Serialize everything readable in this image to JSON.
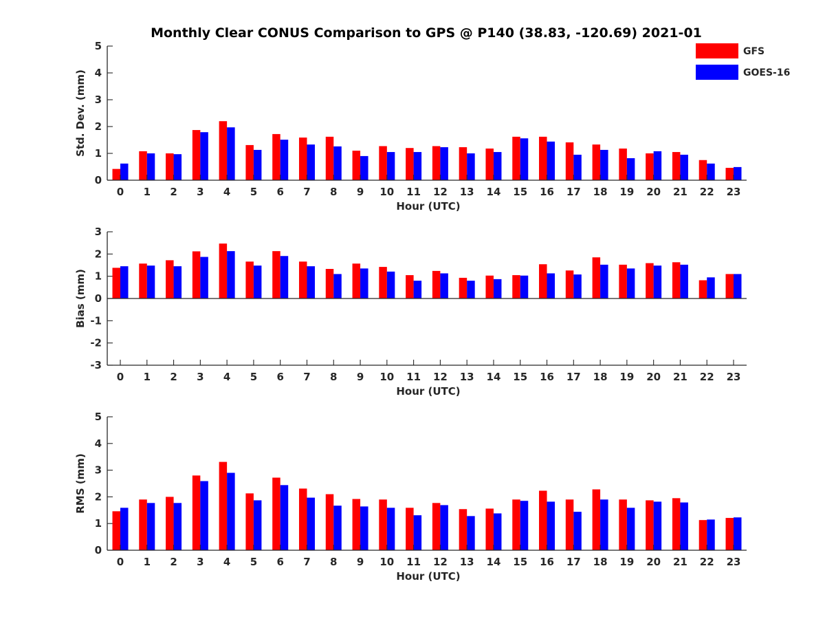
{
  "title": "Monthly Clear CONUS Comparison to GPS @ P140 (38.83, -120.69) 2021-01",
  "legend": [
    {
      "name": "GFS",
      "color": "#ff0000"
    },
    {
      "name": "GOES-16",
      "color": "#0000ff"
    }
  ],
  "chart_data": [
    {
      "type": "bar",
      "ylabel": "Std. Dev. (mm)",
      "xlabel": "Hour (UTC)",
      "ylim": [
        0,
        5
      ],
      "yticks": [
        0,
        1,
        2,
        3,
        4,
        5
      ],
      "categories": [
        "0",
        "1",
        "2",
        "3",
        "4",
        "5",
        "6",
        "7",
        "8",
        "9",
        "10",
        "11",
        "12",
        "13",
        "14",
        "15",
        "16",
        "17",
        "18",
        "19",
        "20",
        "21",
        "22",
        "23"
      ],
      "series": [
        {
          "name": "GFS",
          "color": "#ff0000",
          "values": [
            0.42,
            1.08,
            1.0,
            1.87,
            2.2,
            1.31,
            1.72,
            1.59,
            1.62,
            1.1,
            1.27,
            1.2,
            1.27,
            1.23,
            1.18,
            1.62,
            1.62,
            1.41,
            1.33,
            1.18,
            1.0,
            1.05,
            0.75,
            0.46
          ]
        },
        {
          "name": "GOES-16",
          "color": "#0000ff",
          "values": [
            0.62,
            1.0,
            0.97,
            1.79,
            1.97,
            1.13,
            1.51,
            1.33,
            1.26,
            0.9,
            1.05,
            1.05,
            1.23,
            1.0,
            1.05,
            1.56,
            1.44,
            0.95,
            1.13,
            0.82,
            1.08,
            0.95,
            0.62,
            0.49
          ]
        }
      ]
    },
    {
      "type": "bar",
      "ylabel": "Bias (mm)",
      "xlabel": "Hour (UTC)",
      "ylim": [
        -3,
        3
      ],
      "yticks": [
        -3,
        -2,
        -1,
        0,
        1,
        2,
        3
      ],
      "categories": [
        "0",
        "1",
        "2",
        "3",
        "4",
        "5",
        "6",
        "7",
        "8",
        "9",
        "10",
        "11",
        "12",
        "13",
        "14",
        "15",
        "16",
        "17",
        "18",
        "19",
        "20",
        "21",
        "22",
        "23"
      ],
      "series": [
        {
          "name": "GFS",
          "color": "#ff0000",
          "values": [
            1.38,
            1.57,
            1.72,
            2.12,
            2.47,
            1.66,
            2.13,
            1.66,
            1.33,
            1.57,
            1.42,
            1.05,
            1.24,
            0.93,
            1.03,
            1.05,
            1.54,
            1.26,
            1.85,
            1.52,
            1.59,
            1.63,
            0.82,
            1.1
          ]
        },
        {
          "name": "GOES-16",
          "color": "#0000ff",
          "values": [
            1.45,
            1.48,
            1.45,
            1.87,
            2.13,
            1.48,
            1.91,
            1.45,
            1.1,
            1.35,
            1.21,
            0.8,
            1.13,
            0.8,
            0.87,
            1.03,
            1.13,
            1.08,
            1.52,
            1.35,
            1.48,
            1.52,
            0.95,
            1.1
          ]
        }
      ]
    },
    {
      "type": "bar",
      "ylabel": "RMS (mm)",
      "xlabel": "Hour (UTC)",
      "ylim": [
        0,
        5
      ],
      "yticks": [
        0,
        1,
        2,
        3,
        4,
        5
      ],
      "categories": [
        "0",
        "1",
        "2",
        "3",
        "4",
        "5",
        "6",
        "7",
        "8",
        "9",
        "10",
        "11",
        "12",
        "13",
        "14",
        "15",
        "16",
        "17",
        "18",
        "19",
        "20",
        "21",
        "22",
        "23"
      ],
      "series": [
        {
          "name": "GFS",
          "color": "#ff0000",
          "values": [
            1.46,
            1.9,
            2.0,
            2.8,
            3.31,
            2.13,
            2.72,
            2.31,
            2.1,
            1.92,
            1.9,
            1.59,
            1.77,
            1.54,
            1.56,
            1.9,
            2.23,
            1.9,
            2.28,
            1.9,
            1.87,
            1.95,
            1.13,
            1.21
          ]
        },
        {
          "name": "GOES-16",
          "color": "#0000ff",
          "values": [
            1.59,
            1.77,
            1.77,
            2.59,
            2.9,
            1.87,
            2.44,
            1.97,
            1.67,
            1.64,
            1.59,
            1.31,
            1.69,
            1.28,
            1.38,
            1.85,
            1.82,
            1.44,
            1.9,
            1.59,
            1.82,
            1.79,
            1.15,
            1.23
          ]
        }
      ]
    }
  ]
}
